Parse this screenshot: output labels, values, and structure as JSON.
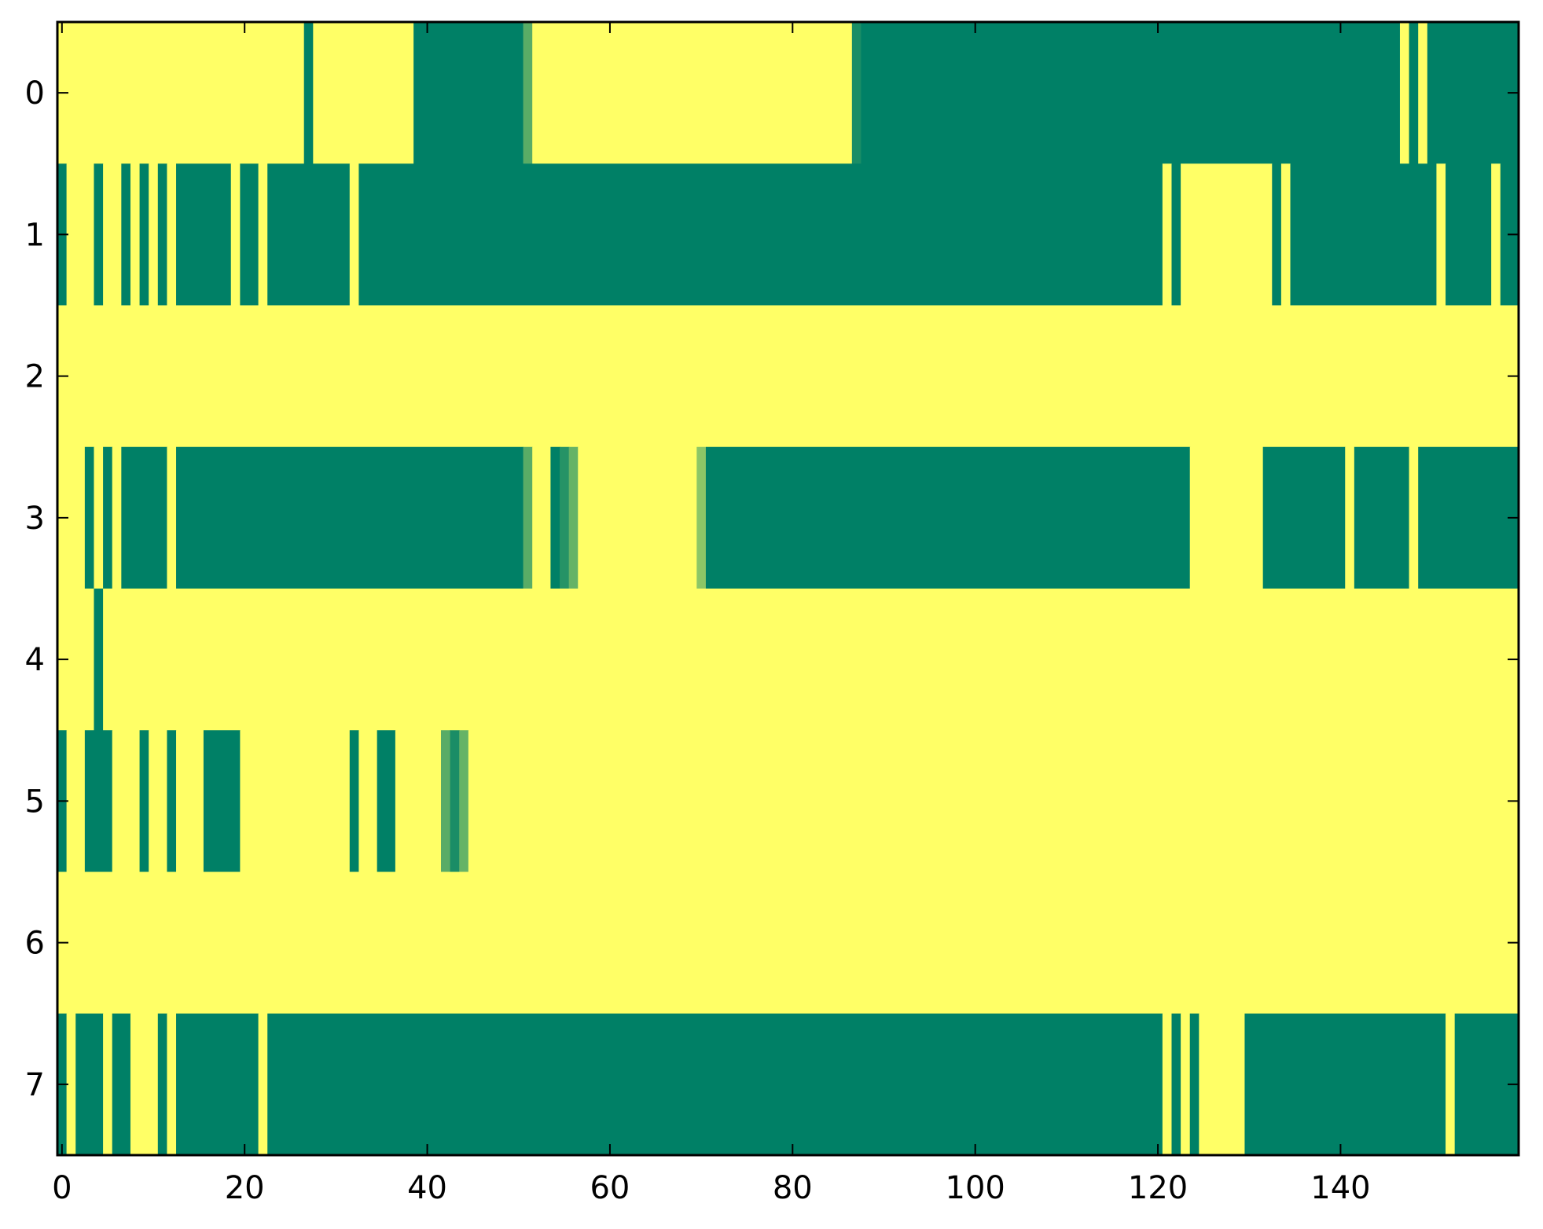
{
  "chart_data": {
    "type": "heatmap",
    "title": "",
    "xlabel": "",
    "ylabel": "",
    "n_cols": 160,
    "n_rows": 8,
    "xlim": [
      -0.5,
      159.5
    ],
    "ylim": [
      7.5,
      -0.5
    ],
    "x_ticks": [
      0,
      20,
      40,
      60,
      80,
      100,
      120,
      140
    ],
    "y_ticks": [
      0,
      1,
      2,
      3,
      4,
      5,
      6,
      7
    ],
    "x_tick_labels": [
      "0",
      "20",
      "40",
      "60",
      "80",
      "100",
      "120",
      "140"
    ],
    "y_tick_labels": [
      "0",
      "1",
      "2",
      "3",
      "4",
      "5",
      "6",
      "7"
    ],
    "grid": false,
    "colormap": "summer",
    "value_range": [
      0,
      1
    ],
    "colors": {
      "low": "#008066",
      "high": "#ffff66"
    },
    "default_value": 1,
    "rows": [
      {
        "row": 0,
        "segments": [
          [
            27,
            27,
            0
          ],
          [
            39,
            50,
            0
          ],
          [
            51,
            51,
            0.35
          ],
          [
            87,
            87,
            0.1
          ],
          [
            88,
            146,
            0
          ],
          [
            148,
            148,
            0
          ],
          [
            150,
            159,
            0
          ]
        ]
      },
      {
        "row": 1,
        "segments": [
          [
            0,
            0,
            0
          ],
          [
            4,
            4,
            0
          ],
          [
            7,
            7,
            0
          ],
          [
            9,
            9,
            0
          ],
          [
            11,
            11,
            0
          ],
          [
            13,
            18,
            0
          ],
          [
            20,
            21,
            0
          ],
          [
            23,
            31,
            0
          ],
          [
            33,
            120,
            0
          ],
          [
            122,
            122,
            0
          ],
          [
            133,
            133,
            0
          ],
          [
            135,
            150,
            0
          ],
          [
            152,
            156,
            0
          ],
          [
            158,
            159,
            0
          ]
        ]
      },
      {
        "row": 2,
        "segments": []
      },
      {
        "row": 3,
        "segments": [
          [
            3,
            3,
            0
          ],
          [
            5,
            5,
            0
          ],
          [
            7,
            11,
            0
          ],
          [
            13,
            50,
            0
          ],
          [
            51,
            51,
            0.35
          ],
          [
            54,
            54,
            0
          ],
          [
            55,
            55,
            0.15
          ],
          [
            56,
            56,
            0.4
          ],
          [
            70,
            70,
            0.55
          ],
          [
            71,
            123,
            0
          ],
          [
            132,
            140,
            0
          ],
          [
            142,
            147,
            0
          ],
          [
            149,
            159,
            0
          ]
        ]
      },
      {
        "row": 4,
        "segments": [
          [
            4,
            4,
            0
          ]
        ]
      },
      {
        "row": 5,
        "segments": [
          [
            0,
            0,
            0
          ],
          [
            3,
            5,
            0
          ],
          [
            9,
            9,
            0
          ],
          [
            12,
            12,
            0
          ],
          [
            16,
            19,
            0
          ],
          [
            32,
            32,
            0
          ],
          [
            35,
            36,
            0
          ],
          [
            42,
            42,
            0.35
          ],
          [
            43,
            43,
            0.1
          ],
          [
            44,
            44,
            0.4
          ]
        ]
      },
      {
        "row": 6,
        "segments": []
      },
      {
        "row": 7,
        "segments": [
          [
            0,
            0,
            0
          ],
          [
            2,
            4,
            0
          ],
          [
            6,
            7,
            0
          ],
          [
            11,
            11,
            0
          ],
          [
            13,
            21,
            0
          ],
          [
            23,
            120,
            0
          ],
          [
            122,
            122,
            0
          ],
          [
            124,
            124,
            0
          ],
          [
            130,
            151,
            0
          ],
          [
            153,
            159,
            0
          ]
        ]
      }
    ]
  }
}
